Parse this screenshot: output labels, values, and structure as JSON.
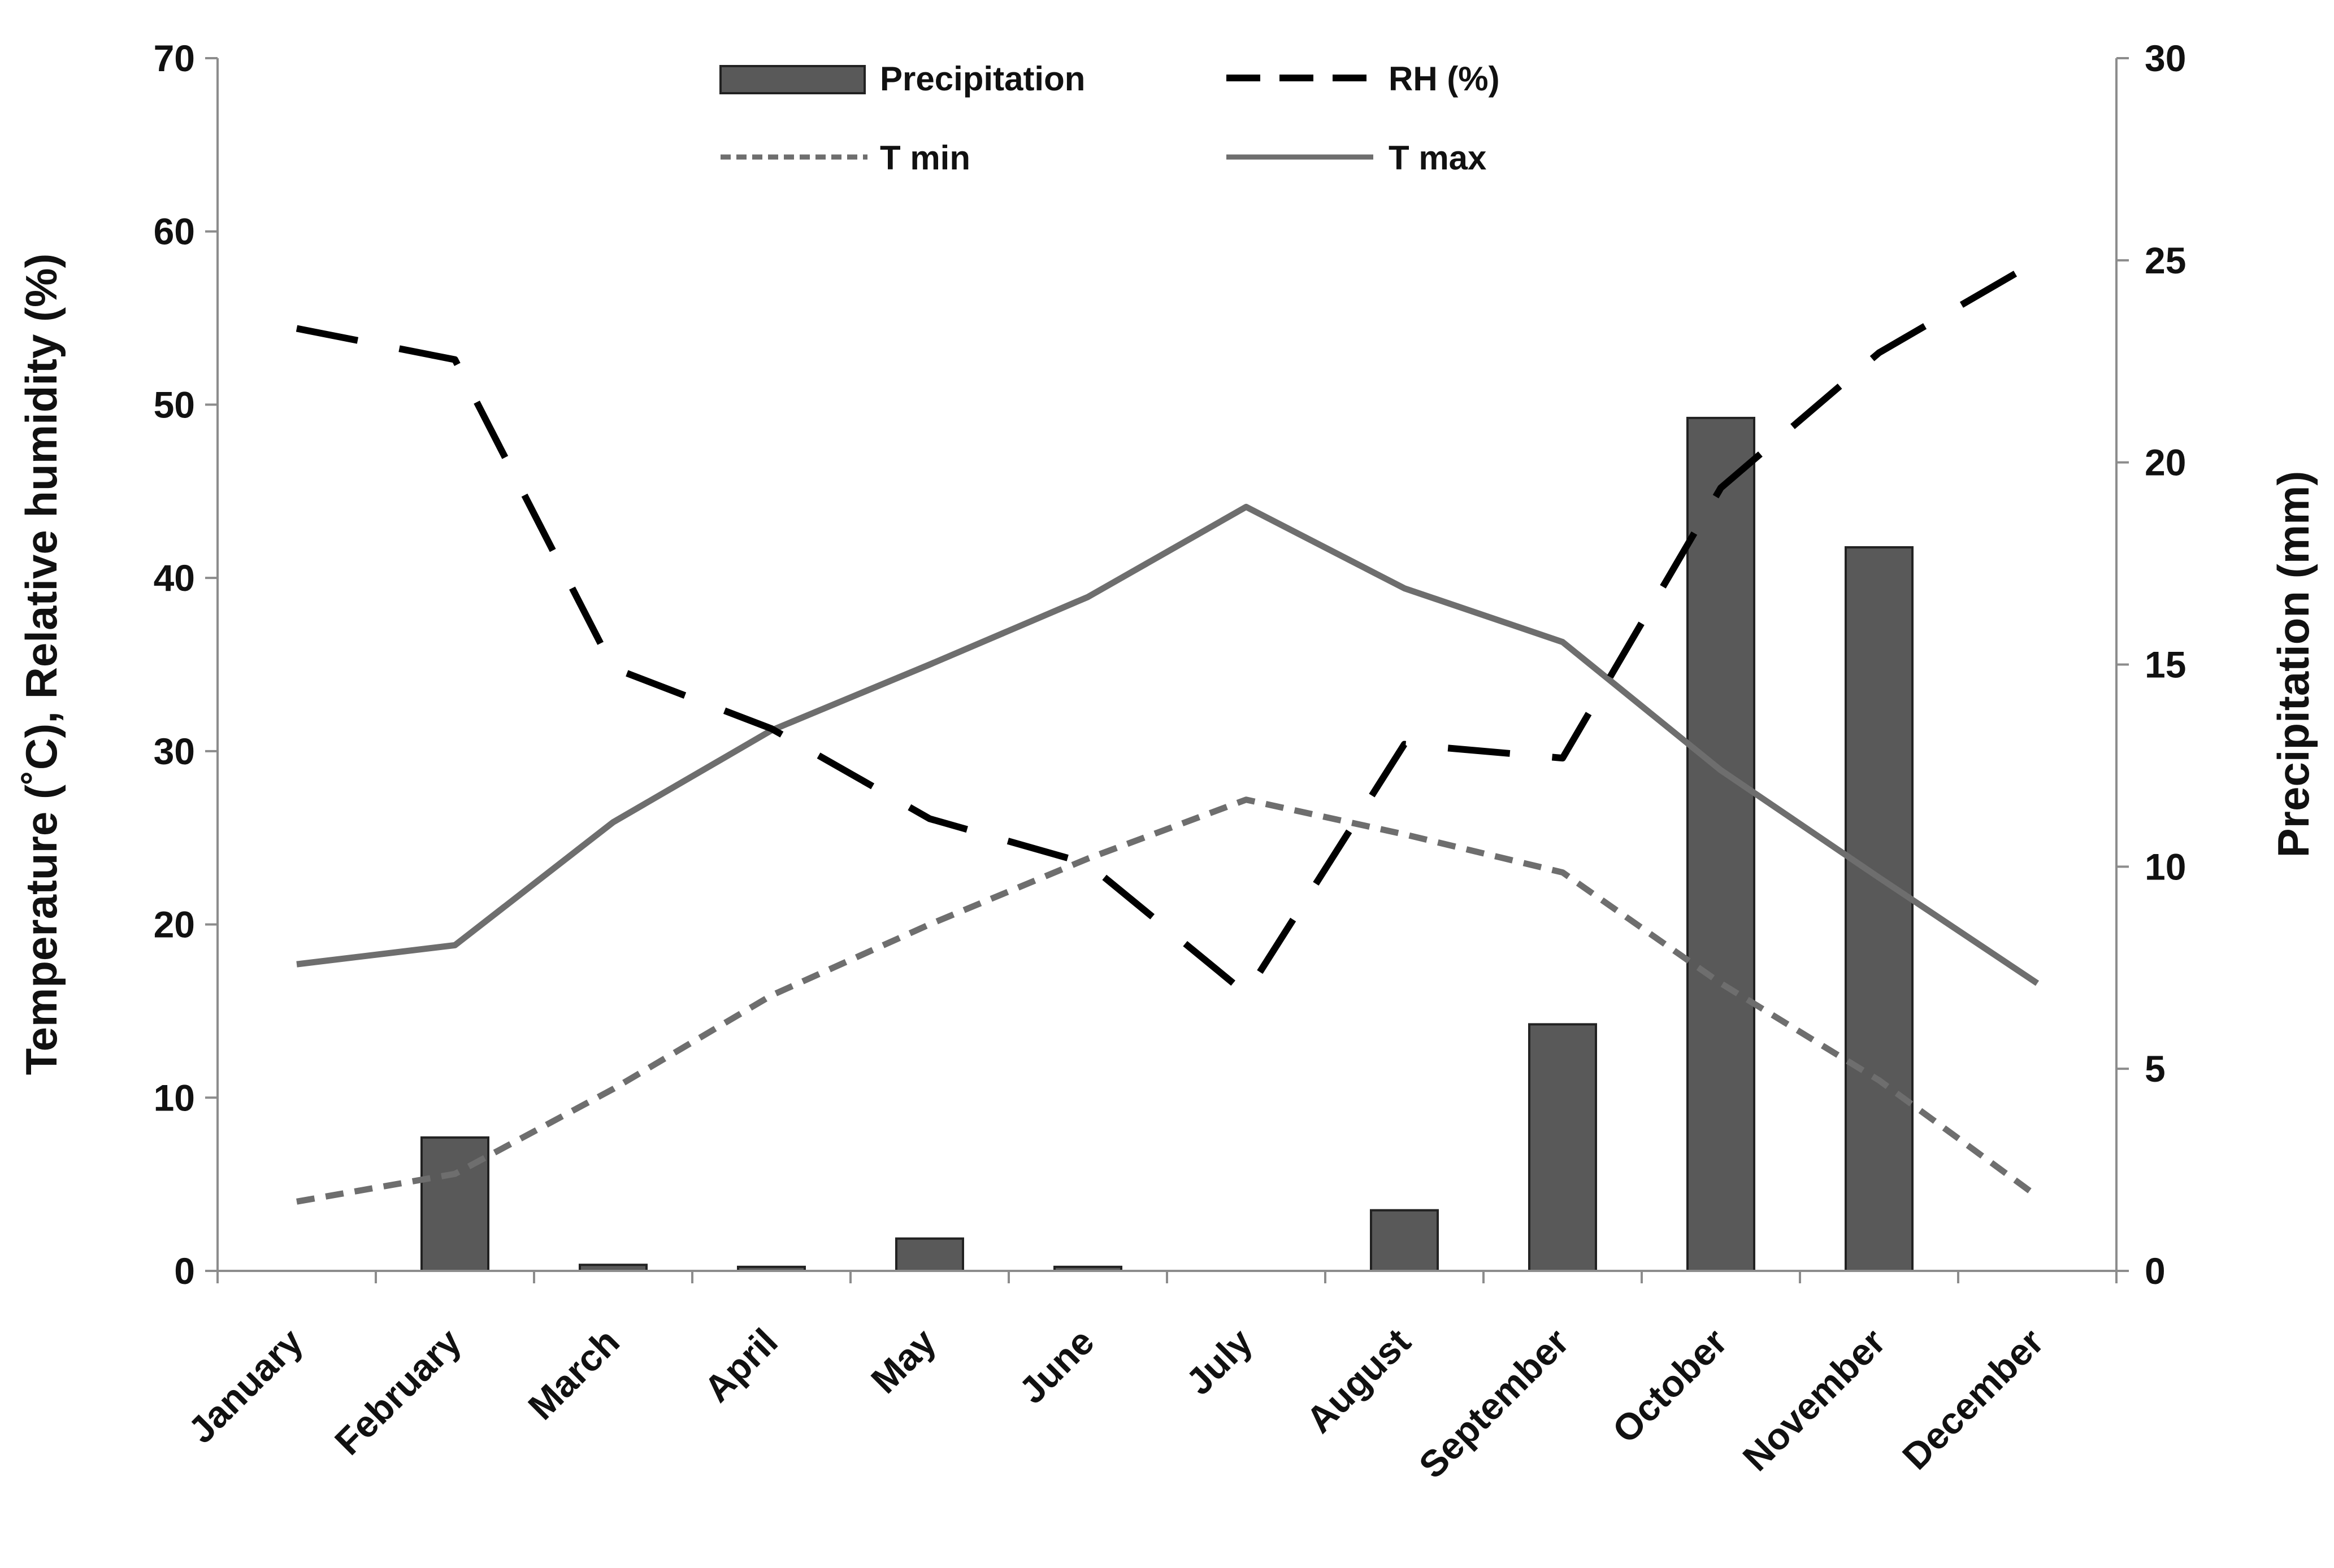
{
  "chart_data": {
    "type": "bar+line",
    "categories": [
      "January",
      "February",
      "March",
      "April",
      "May",
      "June",
      "July",
      "August",
      "September",
      "October",
      "November",
      "December"
    ],
    "series": [
      {
        "name": "Precipitation",
        "kind": "bar",
        "axis": "right",
        "color": "#595959",
        "values": [
          0,
          3.3,
          0.15,
          0.1,
          0.8,
          0.1,
          0,
          1.5,
          6.1,
          21.1,
          17.9,
          0
        ]
      },
      {
        "name": "RH (%)",
        "kind": "line",
        "style": "long-dash",
        "axis": "left",
        "color": "#000000",
        "values": [
          54.4,
          52.6,
          34.8,
          31.3,
          26.1,
          23.5,
          16.0,
          30.4,
          29.6,
          45.2,
          53.0,
          58.3
        ]
      },
      {
        "name": "T min",
        "kind": "line",
        "style": "short-dash",
        "axis": "left",
        "color": "#6e6e6e",
        "values": [
          4.0,
          5.6,
          10.5,
          15.9,
          20.0,
          23.8,
          27.2,
          25.2,
          23.0,
          16.6,
          11.0,
          4.3
        ]
      },
      {
        "name": "T max",
        "kind": "line",
        "style": "solid",
        "axis": "left",
        "color": "#6e6e6e",
        "values": [
          17.7,
          18.8,
          25.9,
          31.2,
          35.0,
          38.9,
          44.1,
          39.4,
          36.3,
          28.9,
          22.7,
          16.6
        ]
      }
    ],
    "y_left": {
      "label": "Temperature (˚C), Relative humidity (%)",
      "ylim": [
        0,
        70
      ],
      "ticks": [
        "0",
        "10",
        "20",
        "30",
        "40",
        "50",
        "60",
        "70"
      ]
    },
    "y_right": {
      "label": "Precipitation (mm)",
      "ylim": [
        0,
        30
      ],
      "ticks": [
        "0",
        "5",
        "10",
        "15",
        "20",
        "25",
        "30"
      ]
    },
    "legend": {
      "placement": "top-center",
      "items": [
        "Precipitation",
        "RH (%)",
        "T min",
        "T max"
      ]
    },
    "grid": false
  }
}
